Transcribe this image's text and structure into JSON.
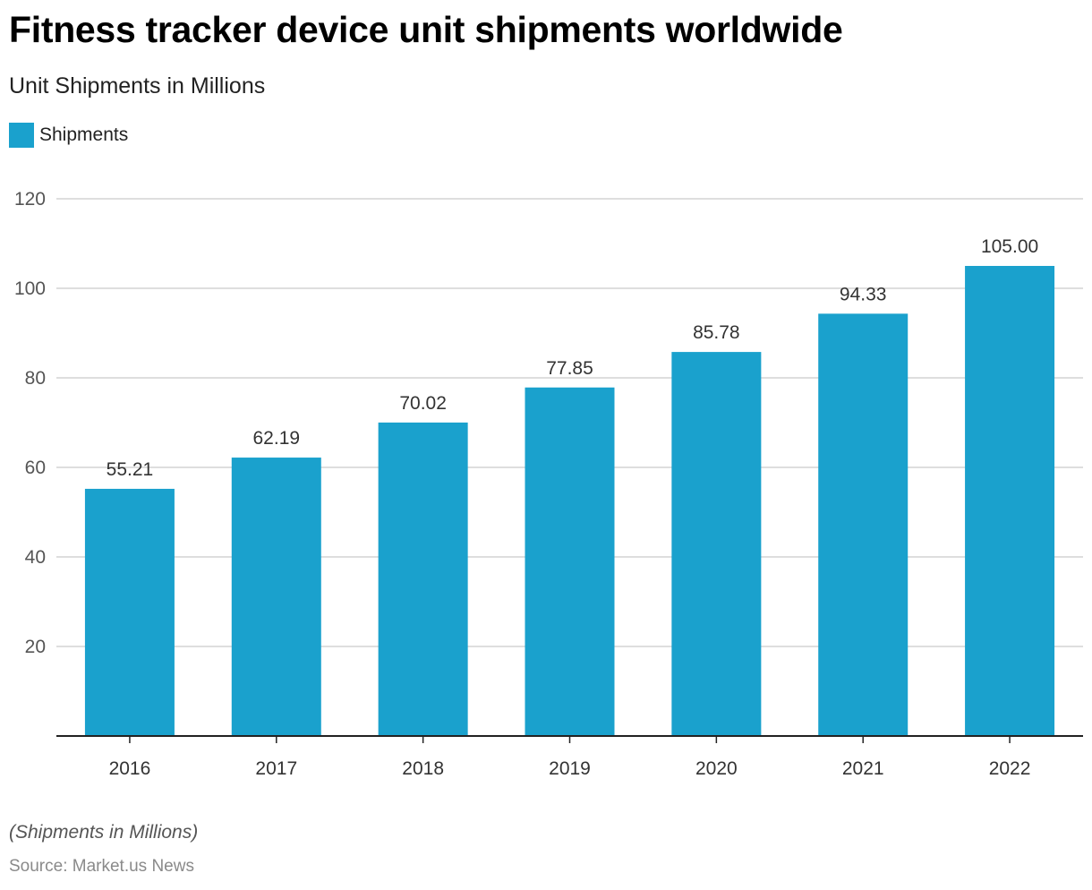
{
  "header": {
    "title": "Fitness tracker device unit shipments worldwide",
    "subtitle": "Unit Shipments in Millions"
  },
  "legend": {
    "label": "Shipments",
    "color": "#1aa1cd"
  },
  "footer": {
    "note": "(Shipments in Millions)",
    "source": "Source: Market.us News"
  },
  "chart_data": {
    "type": "bar",
    "title": "Fitness tracker device unit shipments worldwide",
    "subtitle": "Unit Shipments in Millions",
    "xlabel": "",
    "ylabel": "",
    "categories": [
      "2016",
      "2017",
      "2018",
      "2019",
      "2020",
      "2021",
      "2022"
    ],
    "series": [
      {
        "name": "Shipments",
        "color": "#1aa1cd",
        "values": [
          55.21,
          62.19,
          70.02,
          77.85,
          85.78,
          94.33,
          105.0
        ],
        "labels": [
          "55.21",
          "62.19",
          "70.02",
          "77.85",
          "85.78",
          "94.33",
          "105.00"
        ]
      }
    ],
    "ylim": [
      0,
      120
    ],
    "yticks": [
      20,
      40,
      60,
      80,
      100,
      120
    ],
    "grid": true,
    "legend_position": "top-left"
  }
}
